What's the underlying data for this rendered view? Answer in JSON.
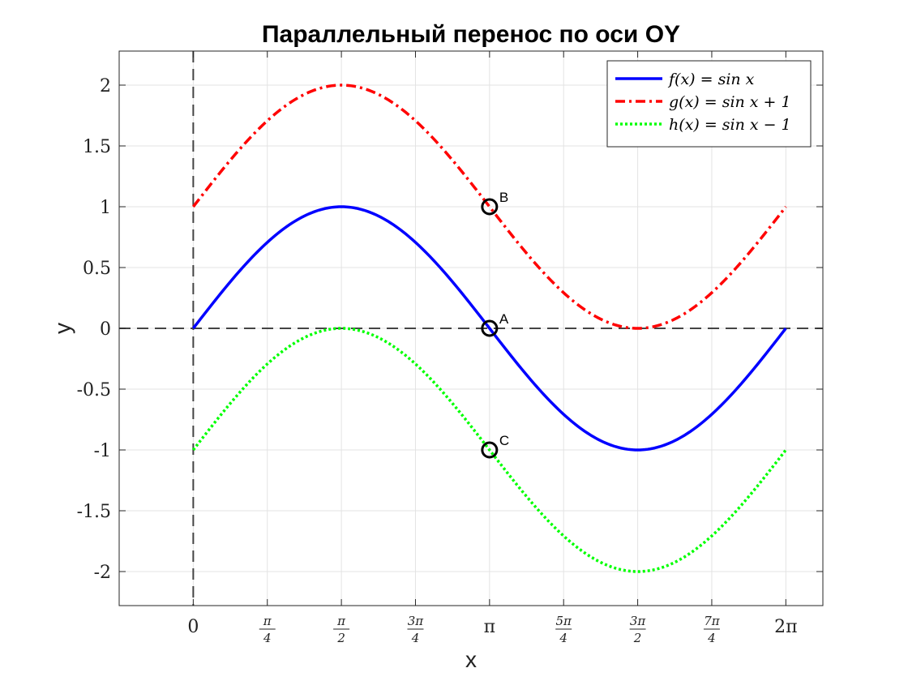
{
  "chart_data": {
    "type": "line",
    "title": "Параллельный перенос по оси OY",
    "xlabel": "x",
    "ylabel": "y",
    "xlim": [
      -0.785398,
      6.6759
    ],
    "ylim": [
      -2.28,
      2.28
    ],
    "grid": true,
    "legend_position": "top-right",
    "x_ticks": [
      {
        "value": 0,
        "label": "0",
        "frac": false
      },
      {
        "value": 0.785398,
        "num": "π",
        "den": "4",
        "frac": true
      },
      {
        "value": 1.570796,
        "num": "π",
        "den": "2",
        "frac": true
      },
      {
        "value": 2.356194,
        "num": "3π",
        "den": "4",
        "frac": true
      },
      {
        "value": 3.141593,
        "label": "π",
        "frac": false
      },
      {
        "value": 3.926991,
        "num": "5π",
        "den": "4",
        "frac": true
      },
      {
        "value": 4.712389,
        "num": "3π",
        "den": "2",
        "frac": true
      },
      {
        "value": 5.497787,
        "num": "7π",
        "den": "4",
        "frac": true
      },
      {
        "value": 6.283185,
        "label": "2π",
        "frac": false
      }
    ],
    "y_ticks": [
      {
        "value": 2,
        "label": "2"
      },
      {
        "value": 1.5,
        "label": "1.5"
      },
      {
        "value": 1,
        "label": "1"
      },
      {
        "value": 0.5,
        "label": "0.5"
      },
      {
        "value": 0,
        "label": "0"
      },
      {
        "value": -0.5,
        "label": "-0.5"
      },
      {
        "value": -1,
        "label": "-1"
      },
      {
        "value": -1.5,
        "label": "-1.5"
      },
      {
        "value": -2,
        "label": "-2"
      }
    ],
    "x_domain": [
      0,
      6.283185
    ],
    "series": [
      {
        "name": "f(x) = sin x",
        "shift": 0,
        "color": "#0000ff",
        "style": "solid"
      },
      {
        "name": "g(x) = sin x + 1",
        "shift": 1,
        "color": "#ff0000",
        "style": "dashdot"
      },
      {
        "name": "h(x) = sin x − 1",
        "shift": -1,
        "color": "#00ff00",
        "style": "dotted"
      }
    ],
    "points": [
      {
        "label": "A",
        "x": 3.141593,
        "y": 0
      },
      {
        "label": "B",
        "x": 3.141593,
        "y": 1
      },
      {
        "label": "C",
        "x": 3.141593,
        "y": -1
      }
    ],
    "reference_lines": [
      {
        "orientation": "horizontal",
        "value": 0,
        "color": "#444444",
        "style": "dashed"
      },
      {
        "orientation": "vertical",
        "value": 0,
        "color": "#444444",
        "style": "dashed"
      }
    ]
  }
}
